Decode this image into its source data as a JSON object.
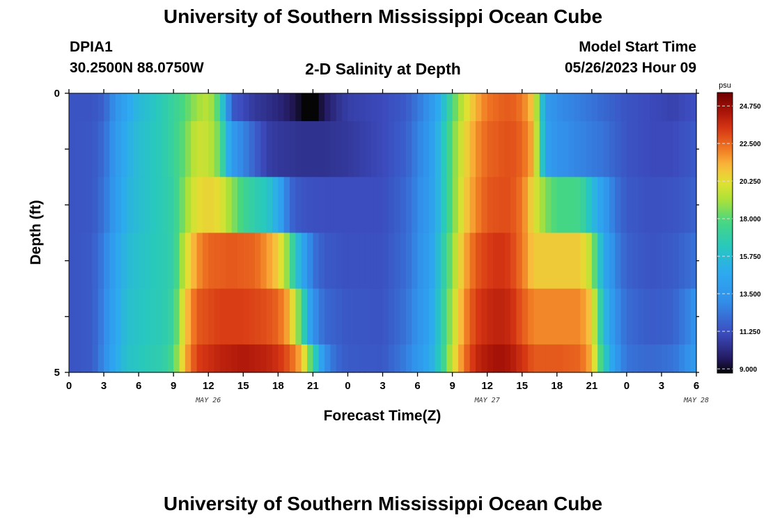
{
  "page": {
    "title": "University of Southern Mississippi Ocean Cube",
    "title_repeat": "University of Southern Mississippi Ocean Cube",
    "station_id": "DPIA1",
    "station_coords": "30.2500N  88.0750W",
    "plot_title": "2-D Salinity at Depth",
    "model_start_label": "Model Start Time",
    "model_start_value": "05/26/2023 Hour 09"
  },
  "chart_data": {
    "type": "heatmap",
    "title": "2-D Salinity at Depth",
    "xlabel": "Forecast Time(Z)",
    "ylabel": "Depth (ft)",
    "x_tick_labels": [
      "0",
      "3",
      "6",
      "9",
      "12",
      "15",
      "18",
      "21",
      "0",
      "3",
      "6",
      "9",
      "12",
      "15",
      "18",
      "21",
      "0",
      "3",
      "6"
    ],
    "x_date_labels": [
      {
        "text": "MAY 26",
        "at_hour": 12
      },
      {
        "text": "MAY 27",
        "at_hour": 36
      },
      {
        "text": "MAY 28",
        "at_hour": 54
      }
    ],
    "y_tick_labels": [
      "0",
      "5"
    ],
    "ylim": [
      0,
      5
    ],
    "xlim_hours": [
      0,
      54
    ],
    "colorbar": {
      "unit": "psu",
      "min": 9.0,
      "max": 25.8,
      "tick_labels": [
        "24.750",
        "22.500",
        "20.250",
        "18.000",
        "15.750",
        "13.500",
        "11.250",
        "9.000"
      ],
      "tick_values": [
        24.75,
        22.5,
        20.25,
        18.0,
        15.75,
        13.5,
        11.25,
        9.0
      ]
    },
    "depths_ft": [
      0,
      1,
      2,
      3,
      4,
      5
    ],
    "columns_per_hour": 2,
    "salinity_keypoints": [
      [
        [
          0,
          11.6
        ],
        [
          2,
          11.6
        ],
        [
          3,
          12.0
        ],
        [
          4,
          13.5
        ],
        [
          5,
          14.8
        ],
        [
          6,
          15.8
        ],
        [
          7,
          16.2
        ],
        [
          8,
          16.8
        ],
        [
          9,
          17.5
        ],
        [
          10,
          18.2
        ],
        [
          11,
          19.2
        ],
        [
          12,
          19.7
        ],
        [
          13,
          17.8
        ],
        [
          13.5,
          14.5
        ],
        [
          14,
          11.8
        ],
        [
          16,
          10.8
        ],
        [
          18,
          10.3
        ],
        [
          19.5,
          9.6
        ],
        [
          20.5,
          8.8
        ],
        [
          21,
          8.7
        ],
        [
          22,
          9.8
        ],
        [
          23,
          10.5
        ],
        [
          24,
          11.0
        ],
        [
          27,
          11.3
        ],
        [
          29,
          11.8
        ],
        [
          31,
          13.5
        ],
        [
          32,
          15.5
        ],
        [
          33,
          18.0
        ],
        [
          34,
          20.0
        ],
        [
          35,
          21.5
        ],
        [
          36,
          22.5
        ],
        [
          37,
          22.8
        ],
        [
          38,
          23.0
        ],
        [
          39,
          22.5
        ],
        [
          40,
          21.0
        ],
        [
          40.5,
          17.8
        ],
        [
          41,
          14.0
        ],
        [
          42,
          13.3
        ],
        [
          44,
          12.8
        ],
        [
          46,
          12.2
        ],
        [
          48,
          11.6
        ],
        [
          50,
          11.3
        ],
        [
          52,
          11.1
        ],
        [
          54,
          11.5
        ]
      ],
      [
        [
          0,
          11.6
        ],
        [
          2,
          11.7
        ],
        [
          3,
          12.3
        ],
        [
          4,
          13.8
        ],
        [
          5,
          15.2
        ],
        [
          6,
          16.0
        ],
        [
          7,
          16.4
        ],
        [
          8,
          16.8
        ],
        [
          9,
          17.5
        ],
        [
          10,
          18.5
        ],
        [
          11,
          20.0
        ],
        [
          12,
          19.8
        ],
        [
          13,
          18.5
        ],
        [
          14,
          14.0
        ],
        [
          15,
          13.0
        ],
        [
          16,
          12.0
        ],
        [
          17,
          11.0
        ],
        [
          18,
          10.8
        ],
        [
          20,
          10.6
        ],
        [
          22,
          10.6
        ],
        [
          24,
          10.8
        ],
        [
          27,
          11.3
        ],
        [
          29,
          12.0
        ],
        [
          31,
          13.8
        ],
        [
          32,
          16.0
        ],
        [
          33,
          18.5
        ],
        [
          34,
          20.5
        ],
        [
          35,
          22.0
        ],
        [
          36,
          22.8
        ],
        [
          37,
          23.0
        ],
        [
          38,
          23.2
        ],
        [
          39,
          22.8
        ],
        [
          40,
          21.5
        ],
        [
          41,
          14.5
        ],
        [
          42,
          13.5
        ],
        [
          44,
          13.0
        ],
        [
          46,
          12.5
        ],
        [
          48,
          11.6
        ],
        [
          50,
          11.3
        ],
        [
          52,
          11.3
        ],
        [
          54,
          11.8
        ]
      ],
      [
        [
          0,
          11.6
        ],
        [
          2,
          11.7
        ],
        [
          3,
          12.5
        ],
        [
          4,
          14.0
        ],
        [
          5,
          15.5
        ],
        [
          6,
          16.0
        ],
        [
          7,
          16.4
        ],
        [
          8,
          16.8
        ],
        [
          9,
          17.3
        ],
        [
          10,
          19.0
        ],
        [
          11,
          20.5
        ],
        [
          12,
          20.8
        ],
        [
          13,
          20.5
        ],
        [
          14,
          19.0
        ],
        [
          15,
          17.8
        ],
        [
          16,
          17.0
        ],
        [
          17,
          16.5
        ],
        [
          18,
          15.0
        ],
        [
          19,
          12.2
        ],
        [
          20,
          11.6
        ],
        [
          22,
          11.4
        ],
        [
          24,
          11.4
        ],
        [
          27,
          11.4
        ],
        [
          29,
          12.2
        ],
        [
          31,
          14.0
        ],
        [
          32,
          16.0
        ],
        [
          33,
          18.5
        ],
        [
          34,
          20.8
        ],
        [
          35,
          22.2
        ],
        [
          36,
          23.0
        ],
        [
          37,
          23.2
        ],
        [
          38,
          23.2
        ],
        [
          39,
          22.5
        ],
        [
          40,
          20.5
        ],
        [
          41,
          18.8
        ],
        [
          42,
          18.0
        ],
        [
          43,
          18.0
        ],
        [
          44,
          17.8
        ],
        [
          46,
          14.2
        ],
        [
          47,
          12.5
        ],
        [
          48,
          11.8
        ],
        [
          50,
          11.5
        ],
        [
          52,
          11.6
        ],
        [
          54,
          12.0
        ]
      ],
      [
        [
          0,
          11.6
        ],
        [
          2,
          11.8
        ],
        [
          3,
          12.8
        ],
        [
          4,
          14.5
        ],
        [
          5,
          15.8
        ],
        [
          6,
          16.2
        ],
        [
          7,
          16.5
        ],
        [
          8,
          16.8
        ],
        [
          9,
          17.2
        ],
        [
          10,
          20.0
        ],
        [
          11,
          22.0
        ],
        [
          12,
          22.8
        ],
        [
          14,
          23.0
        ],
        [
          16,
          22.8
        ],
        [
          17,
          22.0
        ],
        [
          18,
          21.0
        ],
        [
          19,
          18.5
        ],
        [
          19.5,
          16.5
        ],
        [
          20,
          15.0
        ],
        [
          21,
          12.5
        ],
        [
          22,
          11.8
        ],
        [
          24,
          11.5
        ],
        [
          27,
          11.5
        ],
        [
          29,
          12.3
        ],
        [
          31,
          14.2
        ],
        [
          32,
          16.5
        ],
        [
          33,
          19.0
        ],
        [
          34,
          21.5
        ],
        [
          35,
          23.0
        ],
        [
          36,
          23.5
        ],
        [
          37,
          23.8
        ],
        [
          38,
          23.5
        ],
        [
          39,
          22.5
        ],
        [
          40,
          21.0
        ],
        [
          42,
          21.0
        ],
        [
          44,
          21.0
        ],
        [
          45,
          19.5
        ],
        [
          46,
          15.0
        ],
        [
          47,
          13.0
        ],
        [
          48,
          12.0
        ],
        [
          50,
          11.6
        ],
        [
          52,
          11.8
        ],
        [
          54,
          12.5
        ]
      ],
      [
        [
          0,
          11.6
        ],
        [
          2,
          11.8
        ],
        [
          3,
          13.0
        ],
        [
          4,
          14.8
        ],
        [
          5,
          16.0
        ],
        [
          6,
          16.4
        ],
        [
          7,
          16.6
        ],
        [
          8,
          16.8
        ],
        [
          9,
          17.5
        ],
        [
          10,
          21.0
        ],
        [
          11,
          23.0
        ],
        [
          13,
          23.5
        ],
        [
          15,
          23.5
        ],
        [
          17,
          23.2
        ],
        [
          18,
          22.8
        ],
        [
          19,
          21.5
        ],
        [
          20,
          18.0
        ],
        [
          20.5,
          15.5
        ],
        [
          21,
          13.5
        ],
        [
          22,
          12.2
        ],
        [
          24,
          11.7
        ],
        [
          27,
          11.6
        ],
        [
          29,
          12.5
        ],
        [
          31,
          14.5
        ],
        [
          32,
          16.8
        ],
        [
          33,
          19.5
        ],
        [
          34,
          22.0
        ],
        [
          35,
          23.5
        ],
        [
          36,
          24.0
        ],
        [
          37,
          24.2
        ],
        [
          38,
          24.0
        ],
        [
          39,
          23.0
        ],
        [
          40,
          22.2
        ],
        [
          42,
          22.2
        ],
        [
          44,
          22.2
        ],
        [
          45,
          21.0
        ],
        [
          46,
          16.0
        ],
        [
          47,
          13.5
        ],
        [
          48,
          12.3
        ],
        [
          50,
          11.8
        ],
        [
          52,
          12.0
        ],
        [
          54,
          13.5
        ]
      ],
      [
        [
          0,
          11.6
        ],
        [
          2,
          11.8
        ],
        [
          3,
          13.2
        ],
        [
          4,
          15.0
        ],
        [
          5,
          16.2
        ],
        [
          6,
          16.5
        ],
        [
          7,
          16.8
        ],
        [
          8,
          17.0
        ],
        [
          9,
          18.0
        ],
        [
          10,
          21.5
        ],
        [
          11,
          23.5
        ],
        [
          13,
          24.2
        ],
        [
          15,
          24.5
        ],
        [
          17,
          24.2
        ],
        [
          18,
          23.8
        ],
        [
          19,
          23.0
        ],
        [
          20,
          21.5
        ],
        [
          21,
          17.5
        ],
        [
          22,
          13.5
        ],
        [
          23,
          12.2
        ],
        [
          24,
          11.8
        ],
        [
          27,
          11.7
        ],
        [
          29,
          12.8
        ],
        [
          31,
          14.8
        ],
        [
          32,
          17.0
        ],
        [
          33,
          20.0
        ],
        [
          34,
          22.5
        ],
        [
          35,
          24.0
        ],
        [
          36,
          24.5
        ],
        [
          37,
          24.8
        ],
        [
          38,
          24.5
        ],
        [
          39,
          23.8
        ],
        [
          40,
          23.0
        ],
        [
          42,
          23.0
        ],
        [
          44,
          22.8
        ],
        [
          45,
          21.5
        ],
        [
          46,
          17.0
        ],
        [
          47,
          14.0
        ],
        [
          48,
          12.5
        ],
        [
          50,
          12.2
        ],
        [
          52,
          12.5
        ],
        [
          54,
          14.0
        ]
      ]
    ]
  }
}
